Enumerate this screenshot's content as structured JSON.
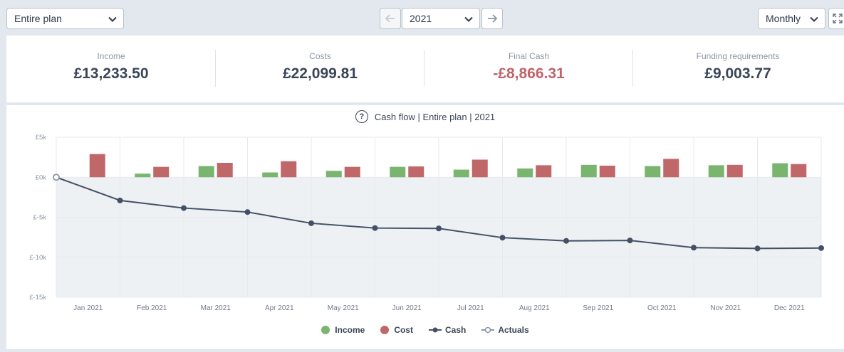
{
  "toolbar": {
    "scope_value": "Entire plan",
    "year_value": "2021",
    "period_value": "Monthly"
  },
  "summary": [
    {
      "label": "Income",
      "value": "£13,233.50",
      "negative": false
    },
    {
      "label": "Costs",
      "value": "£22,099.81",
      "negative": false
    },
    {
      "label": "Final Cash",
      "value": "-£8,866.31",
      "negative": true
    },
    {
      "label": "Funding requirements",
      "value": "£9,003.77",
      "negative": false
    }
  ],
  "chart_title": "Cash flow | Entire plan | 2021",
  "help_glyph": "?",
  "colors": {
    "income": "#79b56e",
    "cost": "#c0676a",
    "cash": "#455066",
    "negative_area": "#edf1f4",
    "grid": "#e6eaee"
  },
  "chart_data": {
    "type": "bar",
    "categories": [
      "Jan 2021",
      "Feb 2021",
      "Mar 2021",
      "Apr 2021",
      "May 2021",
      "Jun 2021",
      "Jul 2021",
      "Aug 2021",
      "Sep 2021",
      "Oct 2021",
      "Nov 2021",
      "Dec 2021"
    ],
    "y_ticks": [
      5000,
      0,
      -5000,
      -10000,
      -15000
    ],
    "y_tick_labels": [
      "£5k",
      "£0k",
      "£-5k",
      "£-10k",
      "£-15k"
    ],
    "ylim": [
      -15000,
      5000
    ],
    "series": [
      {
        "name": "Income",
        "type": "bar",
        "values": [
          0,
          450,
          1400,
          600,
          800,
          1300,
          950,
          1100,
          1550,
          1400,
          1500,
          1750
        ]
      },
      {
        "name": "Cost",
        "type": "bar",
        "values": [
          2900,
          1300,
          1800,
          2000,
          1300,
          1350,
          2200,
          1500,
          1450,
          2300,
          1550,
          1650
        ]
      },
      {
        "name": "Cash",
        "type": "line",
        "x": [
          0,
          1,
          2,
          3,
          4,
          5,
          6,
          7,
          8,
          9,
          10,
          11,
          12
        ],
        "values": [
          0,
          -2900,
          -3850,
          -4350,
          -5750,
          -6350,
          -6400,
          -7550,
          -7950,
          -7900,
          -8800,
          -8900,
          -8850
        ]
      },
      {
        "name": "Actuals",
        "type": "marker"
      }
    ]
  }
}
